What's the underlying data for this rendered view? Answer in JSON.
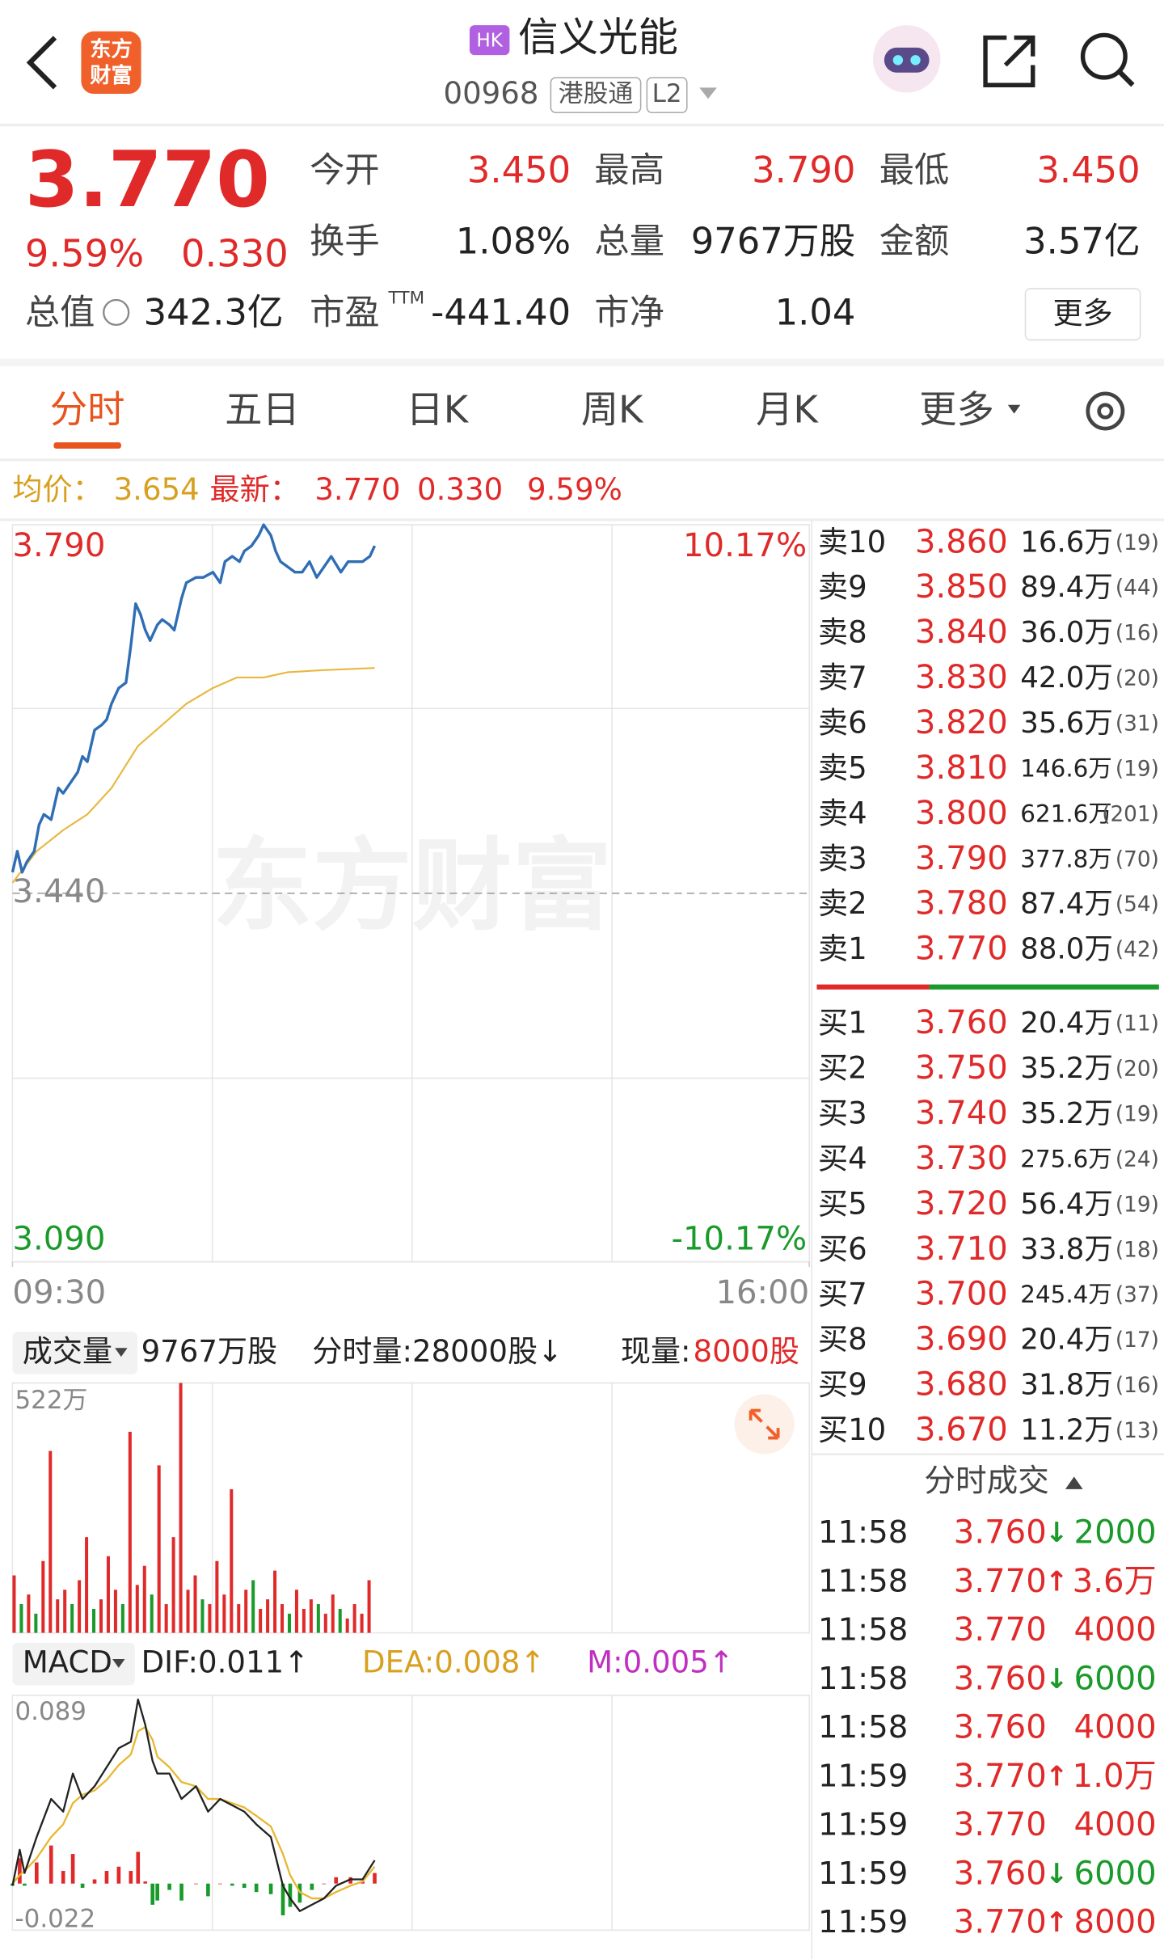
{
  "header": {
    "logo": [
      "东方",
      "财富"
    ],
    "badge": "HK",
    "name": "信义光能",
    "code": "00968",
    "tags": [
      "港股通",
      "L2"
    ]
  },
  "quote": {
    "price": "3.770",
    "change_pct": "9.59%",
    "change": "0.330",
    "stats": [
      {
        "label": "今开",
        "value": "3.450"
      },
      {
        "label": "最高",
        "value": "3.790"
      },
      {
        "label": "最低",
        "value": "3.450"
      },
      {
        "label": "换手",
        "value": "1.08%"
      },
      {
        "label": "总量",
        "value": "9767万股"
      },
      {
        "label": "金额",
        "value": "3.57亿"
      },
      {
        "label": "市盈",
        "value": "-441.40"
      },
      {
        "label": "市净",
        "value": "1.04"
      }
    ],
    "pe_sup": "TTM",
    "market_cap": {
      "label": "总值",
      "value": "342.3亿"
    },
    "more": "更多"
  },
  "tabs": {
    "items": [
      "分时",
      "五日",
      "日K",
      "周K",
      "月K",
      "更多"
    ],
    "active": 0
  },
  "info_bar": {
    "avg_label": "均价：",
    "avg": "3.654",
    "last_label": "最新：",
    "last": "3.770",
    "change": "0.330",
    "change_pct": "9.59%"
  },
  "volume_header": {
    "selector": "成交量",
    "total": "9767万股",
    "per_minute": "分时量:28000股↓",
    "current_label": "现量:",
    "current": "8000股"
  },
  "macd_header": {
    "selector": "MACD",
    "dif": "DIF:0.011↑",
    "dea": "DEA:0.008↑",
    "m": "M:0.005↑"
  },
  "chart_data": [
    {
      "type": "line",
      "watermark": "东方财富",
      "xlim": [
        0,
        330
      ],
      "xticks": [
        {
          "value": 0,
          "label": "09:30"
        },
        {
          "value": 330,
          "label": "16:00"
        }
      ],
      "ylim": [
        3.09,
        3.79
      ],
      "yticks": [
        {
          "value": 3.79,
          "label": "3.790"
        },
        {
          "value": 3.44,
          "label": "3.440"
        },
        {
          "value": 3.09,
          "label": "3.090"
        }
      ],
      "y2lim": [
        -10.17,
        10.17
      ],
      "y2ticks": [
        {
          "value": 10.17,
          "label": "10.17%"
        },
        {
          "value": -10.17,
          "label": "-10.17%"
        }
      ],
      "series": [
        {
          "color": "#2f6db5",
          "x": [
            0,
            2,
            4,
            6,
            9,
            11,
            13,
            16,
            19,
            21,
            24,
            27,
            29,
            31,
            34,
            37,
            39,
            41,
            44,
            47,
            49,
            51,
            53,
            55,
            57,
            60,
            62,
            65,
            67,
            70,
            72,
            76,
            79,
            83,
            86,
            88,
            91,
            94,
            96,
            99,
            102,
            104,
            107,
            109,
            111,
            114,
            117,
            120,
            123,
            126,
            129,
            132,
            136,
            139,
            142,
            145,
            148,
            150
          ],
          "values": [
            3.46,
            3.48,
            3.46,
            3.47,
            3.48,
            3.505,
            3.515,
            3.51,
            3.54,
            3.535,
            3.545,
            3.555,
            3.57,
            3.565,
            3.595,
            3.6,
            3.605,
            3.62,
            3.635,
            3.64,
            3.675,
            3.715,
            3.705,
            3.69,
            3.68,
            3.695,
            3.7,
            3.695,
            3.69,
            3.72,
            3.735,
            3.74,
            3.74,
            3.745,
            3.735,
            3.755,
            3.76,
            3.755,
            3.765,
            3.77,
            3.78,
            3.79,
            3.78,
            3.765,
            3.755,
            3.75,
            3.745,
            3.745,
            3.755,
            3.74,
            3.75,
            3.76,
            3.745,
            3.755,
            3.755,
            3.755,
            3.76,
            3.77
          ]
        },
        {
          "color": "#e8b840",
          "x": [
            0,
            10,
            21,
            31,
            41,
            52,
            62,
            72,
            83,
            93,
            104,
            114,
            129,
            150
          ],
          "values": [
            3.45,
            3.48,
            3.5,
            3.515,
            3.54,
            3.58,
            3.6,
            3.62,
            3.635,
            3.645,
            3.645,
            3.65,
            3.652,
            3.654
          ]
        }
      ]
    },
    {
      "type": "bar",
      "xlim": [
        0,
        330
      ],
      "ylim": [
        0,
        522
      ],
      "yticks": [
        {
          "value": 522,
          "label": "522万"
        }
      ],
      "x": [
        0,
        3,
        6,
        9,
        12,
        15,
        18,
        21,
        24,
        27,
        30,
        33,
        36,
        39,
        42,
        45,
        48,
        51,
        54,
        57,
        60,
        63,
        66,
        69,
        72,
        75,
        78,
        81,
        84,
        87,
        90,
        93,
        96,
        99,
        102,
        105,
        108,
        111,
        114,
        117,
        120,
        123,
        126,
        129,
        132,
        135,
        138,
        141,
        144,
        147
      ],
      "values": [
        120,
        60,
        80,
        40,
        150,
        380,
        70,
        90,
        60,
        110,
        200,
        50,
        70,
        160,
        90,
        60,
        420,
        100,
        140,
        80,
        350,
        60,
        200,
        522,
        90,
        120,
        70,
        60,
        150,
        80,
        300,
        60,
        90,
        110,
        50,
        70,
        130,
        60,
        40,
        90,
        50,
        70,
        60,
        40,
        80,
        50,
        30,
        60,
        40,
        110
      ],
      "colors": [
        "#e02a2a",
        "#1a9a2a",
        "#e02a2a",
        "#1a9a2a",
        "#e02a2a",
        "#e02a2a",
        "#e02a2a",
        "#e02a2a",
        "#1a9a2a",
        "#e02a2a",
        "#e02a2a",
        "#1a9a2a",
        "#e02a2a",
        "#e02a2a",
        "#e02a2a",
        "#1a9a2a",
        "#e02a2a",
        "#e02a2a",
        "#e02a2a",
        "#1a9a2a",
        "#e02a2a",
        "#e02a2a",
        "#e02a2a",
        "#e02a2a",
        "#e02a2a",
        "#e02a2a",
        "#1a9a2a",
        "#e02a2a",
        "#e02a2a",
        "#e02a2a",
        "#e02a2a",
        "#e02a2a",
        "#e02a2a",
        "#1a9a2a",
        "#e02a2a",
        "#e02a2a",
        "#e02a2a",
        "#e02a2a",
        "#1a9a2a",
        "#e02a2a",
        "#e02a2a",
        "#e02a2a",
        "#1a9a2a",
        "#e02a2a",
        "#e02a2a",
        "#1a9a2a",
        "#e02a2a",
        "#e02a2a",
        "#e02a2a",
        "#e02a2a"
      ]
    },
    {
      "type": "macd",
      "xlim": [
        0,
        330
      ],
      "ylim": [
        -0.022,
        0.089
      ],
      "yticks": [
        0.089,
        -0.022
      ],
      "x": [
        0,
        3,
        5,
        10,
        16,
        21,
        25,
        29,
        34,
        39,
        44,
        49,
        52,
        55,
        58,
        60,
        65,
        70,
        76,
        81,
        86,
        91,
        96,
        101,
        107,
        112,
        115,
        119,
        124,
        129,
        134,
        140,
        145,
        150
      ],
      "series": [
        {
          "color": "#222222",
          "values": [
            -0.001,
            0.016,
            0.005,
            0.022,
            0.04,
            0.034,
            0.052,
            0.04,
            0.046,
            0.055,
            0.064,
            0.067,
            0.087,
            0.075,
            0.058,
            0.052,
            0.052,
            0.04,
            0.046,
            0.034,
            0.04,
            0.037,
            0.034,
            0.028,
            0.022,
            -0.001,
            -0.007,
            -0.013,
            -0.01,
            -0.007,
            -0.001,
            0.002,
            0.002,
            0.011
          ]
        },
        {
          "color": "#e8b830",
          "values": [
            0,
            0.004,
            0.006,
            0.012,
            0.022,
            0.028,
            0.038,
            0.042,
            0.044,
            0.049,
            0.056,
            0.061,
            0.072,
            0.074,
            0.068,
            0.06,
            0.055,
            0.048,
            0.046,
            0.04,
            0.04,
            0.038,
            0.036,
            0.032,
            0.027,
            0.014,
            0.004,
            -0.004,
            -0.007,
            -0.007,
            -0.004,
            -0.001,
            0.001,
            0.008
          ]
        }
      ],
      "histogram": {
        "up_color": "#e02a2a",
        "down_color": "#1a9a2a",
        "values": [
          -0.001,
          0.012,
          -0.001,
          0.01,
          0.018,
          0.006,
          0.014,
          -0.002,
          0.002,
          0.006,
          0.008,
          0.006,
          0.015,
          0.001,
          -0.01,
          -0.008,
          -0.003,
          -0.008,
          0,
          -0.006,
          0,
          -0.001,
          -0.002,
          -0.004,
          -0.005,
          -0.015,
          -0.011,
          -0.009,
          -0.003,
          0,
          0.003,
          0.003,
          0.001,
          0.005
        ]
      }
    }
  ],
  "order_book": {
    "asks": [
      {
        "label": "卖10",
        "price": "3.860",
        "volume": "16.6万",
        "count": "(19)"
      },
      {
        "label": "卖9",
        "price": "3.850",
        "volume": "89.4万",
        "count": "(44)"
      },
      {
        "label": "卖8",
        "price": "3.840",
        "volume": "36.0万",
        "count": "(16)"
      },
      {
        "label": "卖7",
        "price": "3.830",
        "volume": "42.0万",
        "count": "(20)"
      },
      {
        "label": "卖6",
        "price": "3.820",
        "volume": "35.6万",
        "count": "(31)"
      },
      {
        "label": "卖5",
        "price": "3.810",
        "volume": "146.6万",
        "count": "(19)"
      },
      {
        "label": "卖4",
        "price": "3.800",
        "volume": "621.6万",
        "count": "(201)"
      },
      {
        "label": "卖3",
        "price": "3.790",
        "volume": "377.8万",
        "count": "(70)"
      },
      {
        "label": "卖2",
        "price": "3.780",
        "volume": "87.4万",
        "count": "(54)"
      },
      {
        "label": "卖1",
        "price": "3.770",
        "volume": "88.0万",
        "count": "(42)"
      }
    ],
    "bids": [
      {
        "label": "买1",
        "price": "3.760",
        "volume": "20.4万",
        "count": "(11)"
      },
      {
        "label": "买2",
        "price": "3.750",
        "volume": "35.2万",
        "count": "(20)"
      },
      {
        "label": "买3",
        "price": "3.740",
        "volume": "35.2万",
        "count": "(19)"
      },
      {
        "label": "买4",
        "price": "3.730",
        "volume": "275.6万",
        "count": "(24)"
      },
      {
        "label": "买5",
        "price": "3.720",
        "volume": "56.4万",
        "count": "(19)"
      },
      {
        "label": "买6",
        "price": "3.710",
        "volume": "33.8万",
        "count": "(18)"
      },
      {
        "label": "买7",
        "price": "3.700",
        "volume": "245.4万",
        "count": "(37)"
      },
      {
        "label": "买8",
        "price": "3.690",
        "volume": "20.4万",
        "count": "(17)"
      },
      {
        "label": "买9",
        "price": "3.680",
        "volume": "31.8万",
        "count": "(16)"
      },
      {
        "label": "买10",
        "price": "3.670",
        "volume": "11.2万",
        "count": "(13)"
      }
    ]
  },
  "trades": {
    "title": "分时成交",
    "rows": [
      {
        "time": "11:58",
        "price": "3.760",
        "arrow": "↓",
        "volume": "2000"
      },
      {
        "time": "11:58",
        "price": "3.770",
        "arrow": "↑",
        "volume": "3.6万"
      },
      {
        "time": "11:58",
        "price": "3.770",
        "volume": "4000"
      },
      {
        "time": "11:58",
        "price": "3.760",
        "arrow": "↓",
        "volume": "6000"
      },
      {
        "time": "11:58",
        "price": "3.760",
        "volume": "4000"
      },
      {
        "time": "11:59",
        "price": "3.770",
        "arrow": "↑",
        "volume": "1.0万"
      },
      {
        "time": "11:59",
        "price": "3.770",
        "volume": "4000"
      },
      {
        "time": "11:59",
        "price": "3.760",
        "arrow": "↓",
        "volume": "6000"
      },
      {
        "time": "11:59",
        "price": "3.770",
        "arrow": "↑",
        "volume": "8000"
      }
    ]
  }
}
